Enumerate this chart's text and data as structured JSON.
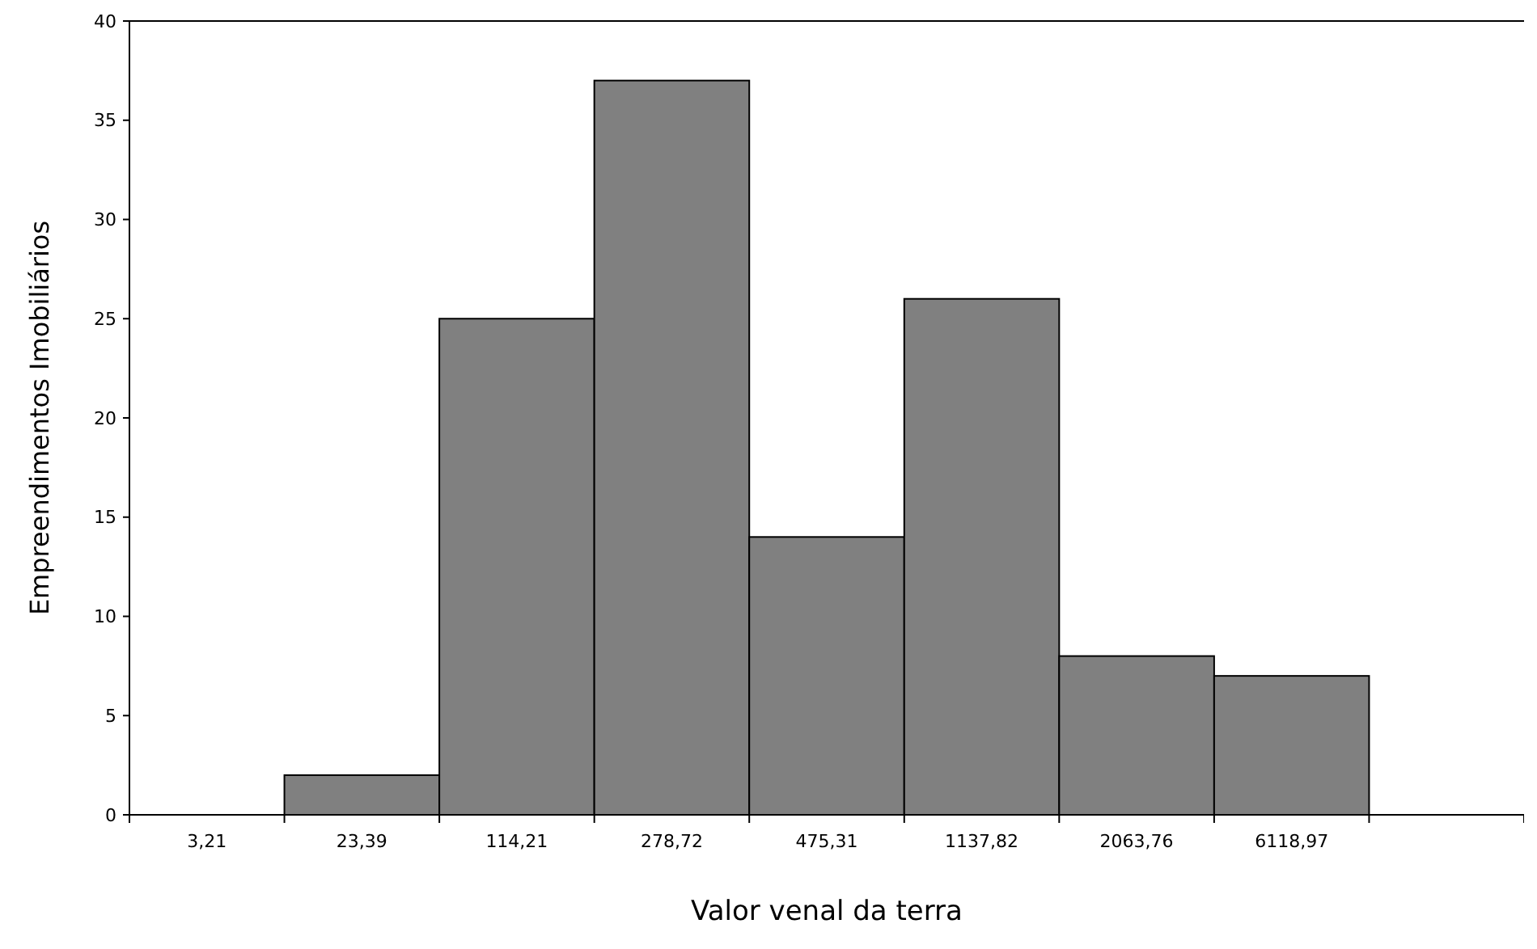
{
  "chart_data": {
    "type": "bar",
    "xlabel": "Valor venal da terra",
    "ylabel": "Empreendimentos Imobiliários",
    "categories": [
      "3,21",
      "23,39",
      "114,21",
      "278,72",
      "475,31",
      "1137,82",
      "2063,76",
      "6118,97",
      null
    ],
    "values": [
      0,
      2,
      25,
      37,
      14,
      26,
      8,
      7,
      0
    ],
    "color": "#808080",
    "ylim": [
      0,
      40
    ],
    "yticks": [
      0,
      5,
      10,
      15,
      20,
      25,
      30,
      35,
      40
    ],
    "grid": false
  }
}
